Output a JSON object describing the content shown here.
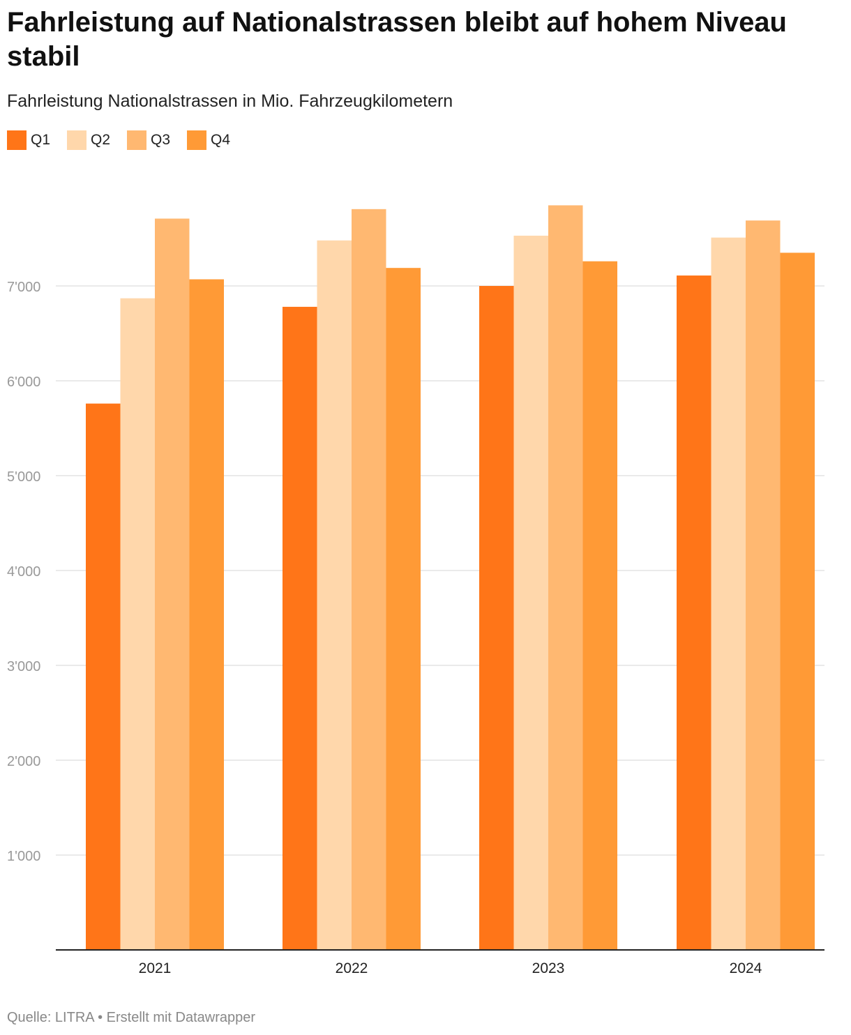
{
  "title": "Fahrleistung auf Nationalstrassen bleibt auf hohem Niveau stabil",
  "subtitle": "Fahrleistung Nationalstrassen in Mio. Fahrzeugkilometern",
  "footer": {
    "source": "Quelle: LITRA",
    "separator": " • ",
    "credit": "Erstellt mit Datawrapper"
  },
  "chart_data": {
    "type": "bar",
    "title": "Fahrleistung auf Nationalstrassen bleibt auf hohem Niveau stabil",
    "subtitle": "Fahrleistung Nationalstrassen in Mio. Fahrzeugkilometern",
    "xlabel": "",
    "ylabel": "",
    "categories": [
      "2021",
      "2022",
      "2023",
      "2024"
    ],
    "series": [
      {
        "name": "Q1",
        "color": "#ff7518",
        "values": [
          5760,
          6780,
          7000,
          7110
        ]
      },
      {
        "name": "Q2",
        "color": "#ffd7ab",
        "values": [
          6870,
          7480,
          7530,
          7510
        ]
      },
      {
        "name": "Q3",
        "color": "#ffb871",
        "values": [
          7710,
          7810,
          7850,
          7690
        ]
      },
      {
        "name": "Q4",
        "color": "#ff9a36",
        "values": [
          7070,
          7190,
          7260,
          7350
        ]
      }
    ],
    "ylim": [
      0,
      8000
    ],
    "yticks": [
      1000,
      2000,
      3000,
      4000,
      5000,
      6000,
      7000
    ],
    "ytick_labels": [
      "1'000",
      "2'000",
      "3'000",
      "4'000",
      "5'000",
      "6'000",
      "7'000"
    ],
    "grid": true,
    "legend_position": "top-left"
  }
}
